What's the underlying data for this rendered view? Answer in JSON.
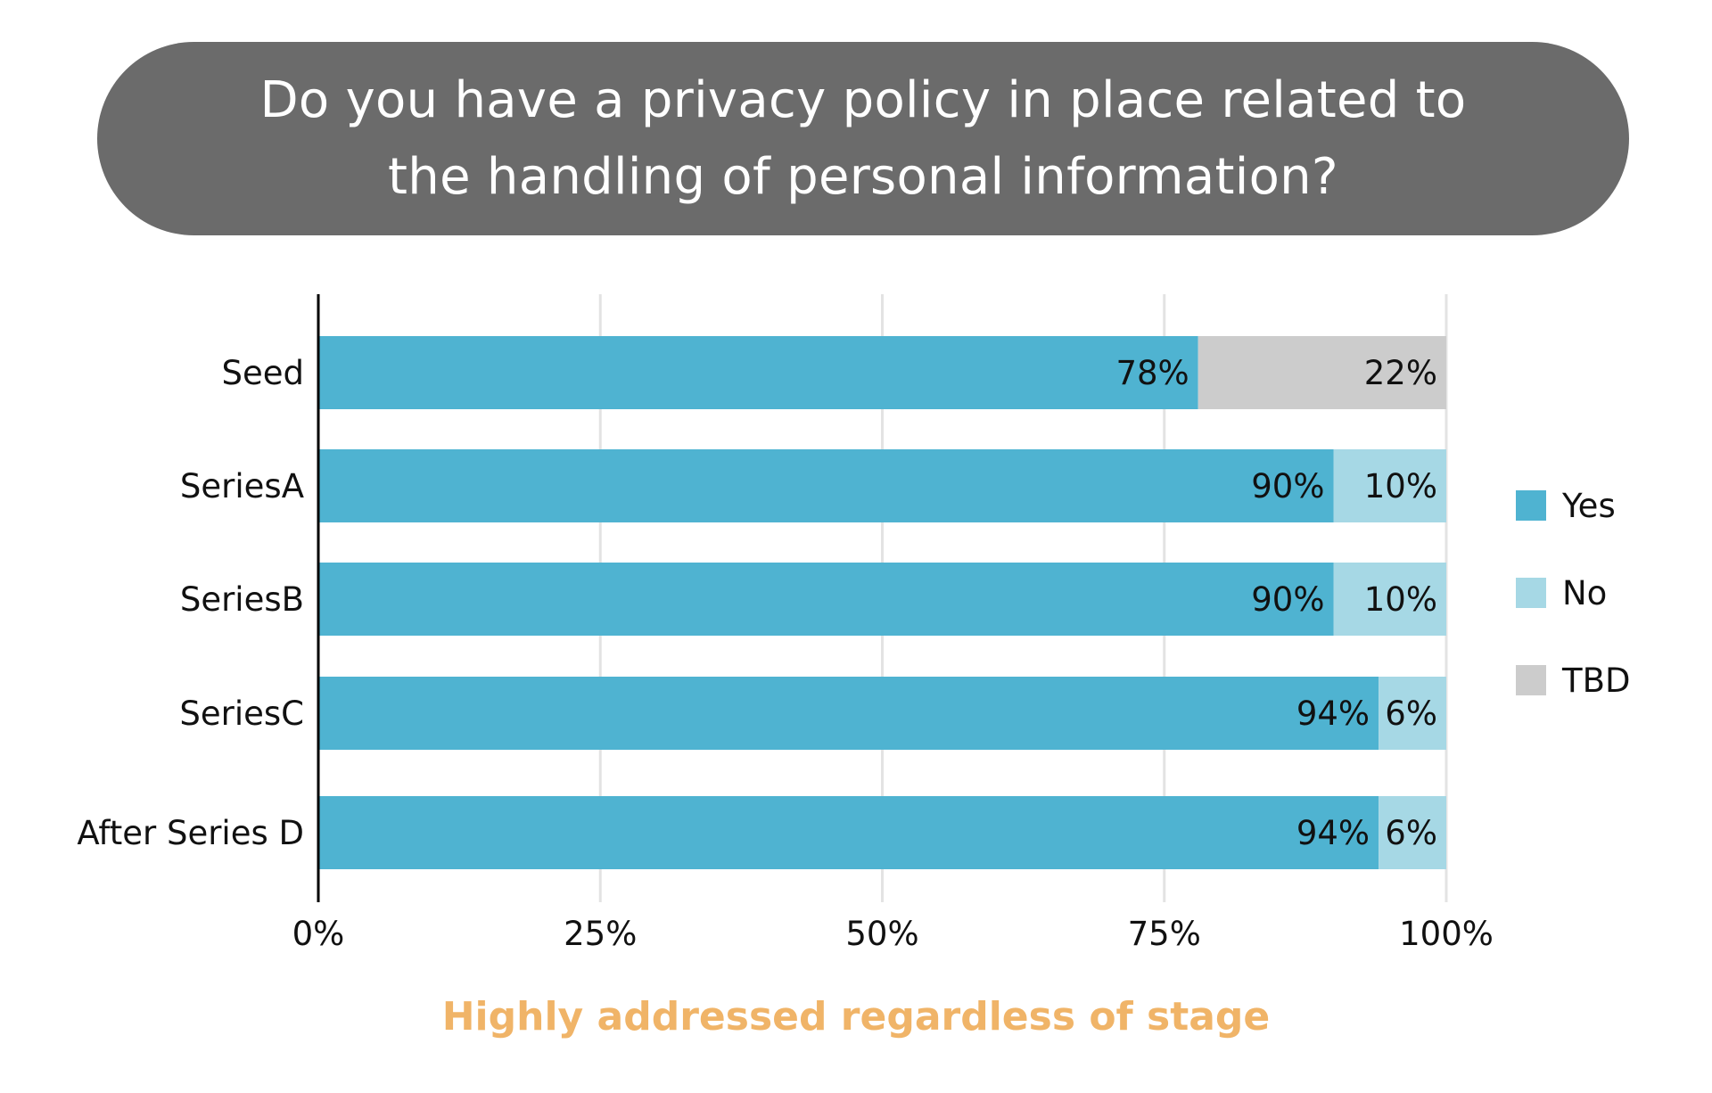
{
  "chart_data": {
    "type": "bar",
    "orientation": "horizontal",
    "stacked": true,
    "title": "Do you have a privacy policy in place related to the handling of personal information?",
    "subtitle": "Highly addressed regardless of stage",
    "categories": [
      "Seed",
      "SeriesA",
      "SeriesB",
      "SeriesC",
      "After Series D"
    ],
    "series": [
      {
        "name": "Yes",
        "color": "#4fb3d1",
        "values": [
          78,
          90,
          90,
          94,
          94
        ],
        "labels": [
          "78%",
          "90%",
          "90%",
          "94%",
          "94%"
        ]
      },
      {
        "name": "No",
        "color": "#a6d8e5",
        "values": [
          0,
          10,
          10,
          6,
          6
        ],
        "labels": [
          "",
          "10%",
          "10%",
          "6%",
          "6%"
        ]
      },
      {
        "name": "TBD",
        "color": "#cccccc",
        "values": [
          22,
          0,
          0,
          0,
          0
        ],
        "labels": [
          "22%",
          "",
          "",
          "",
          ""
        ]
      }
    ],
    "xlim": [
      0,
      100
    ],
    "xticks": [
      0,
      25,
      50,
      75,
      100
    ],
    "xtick_labels": [
      "0%",
      "25%",
      "50%",
      "75%",
      "100%"
    ],
    "grid": true,
    "legend_position": "right"
  }
}
